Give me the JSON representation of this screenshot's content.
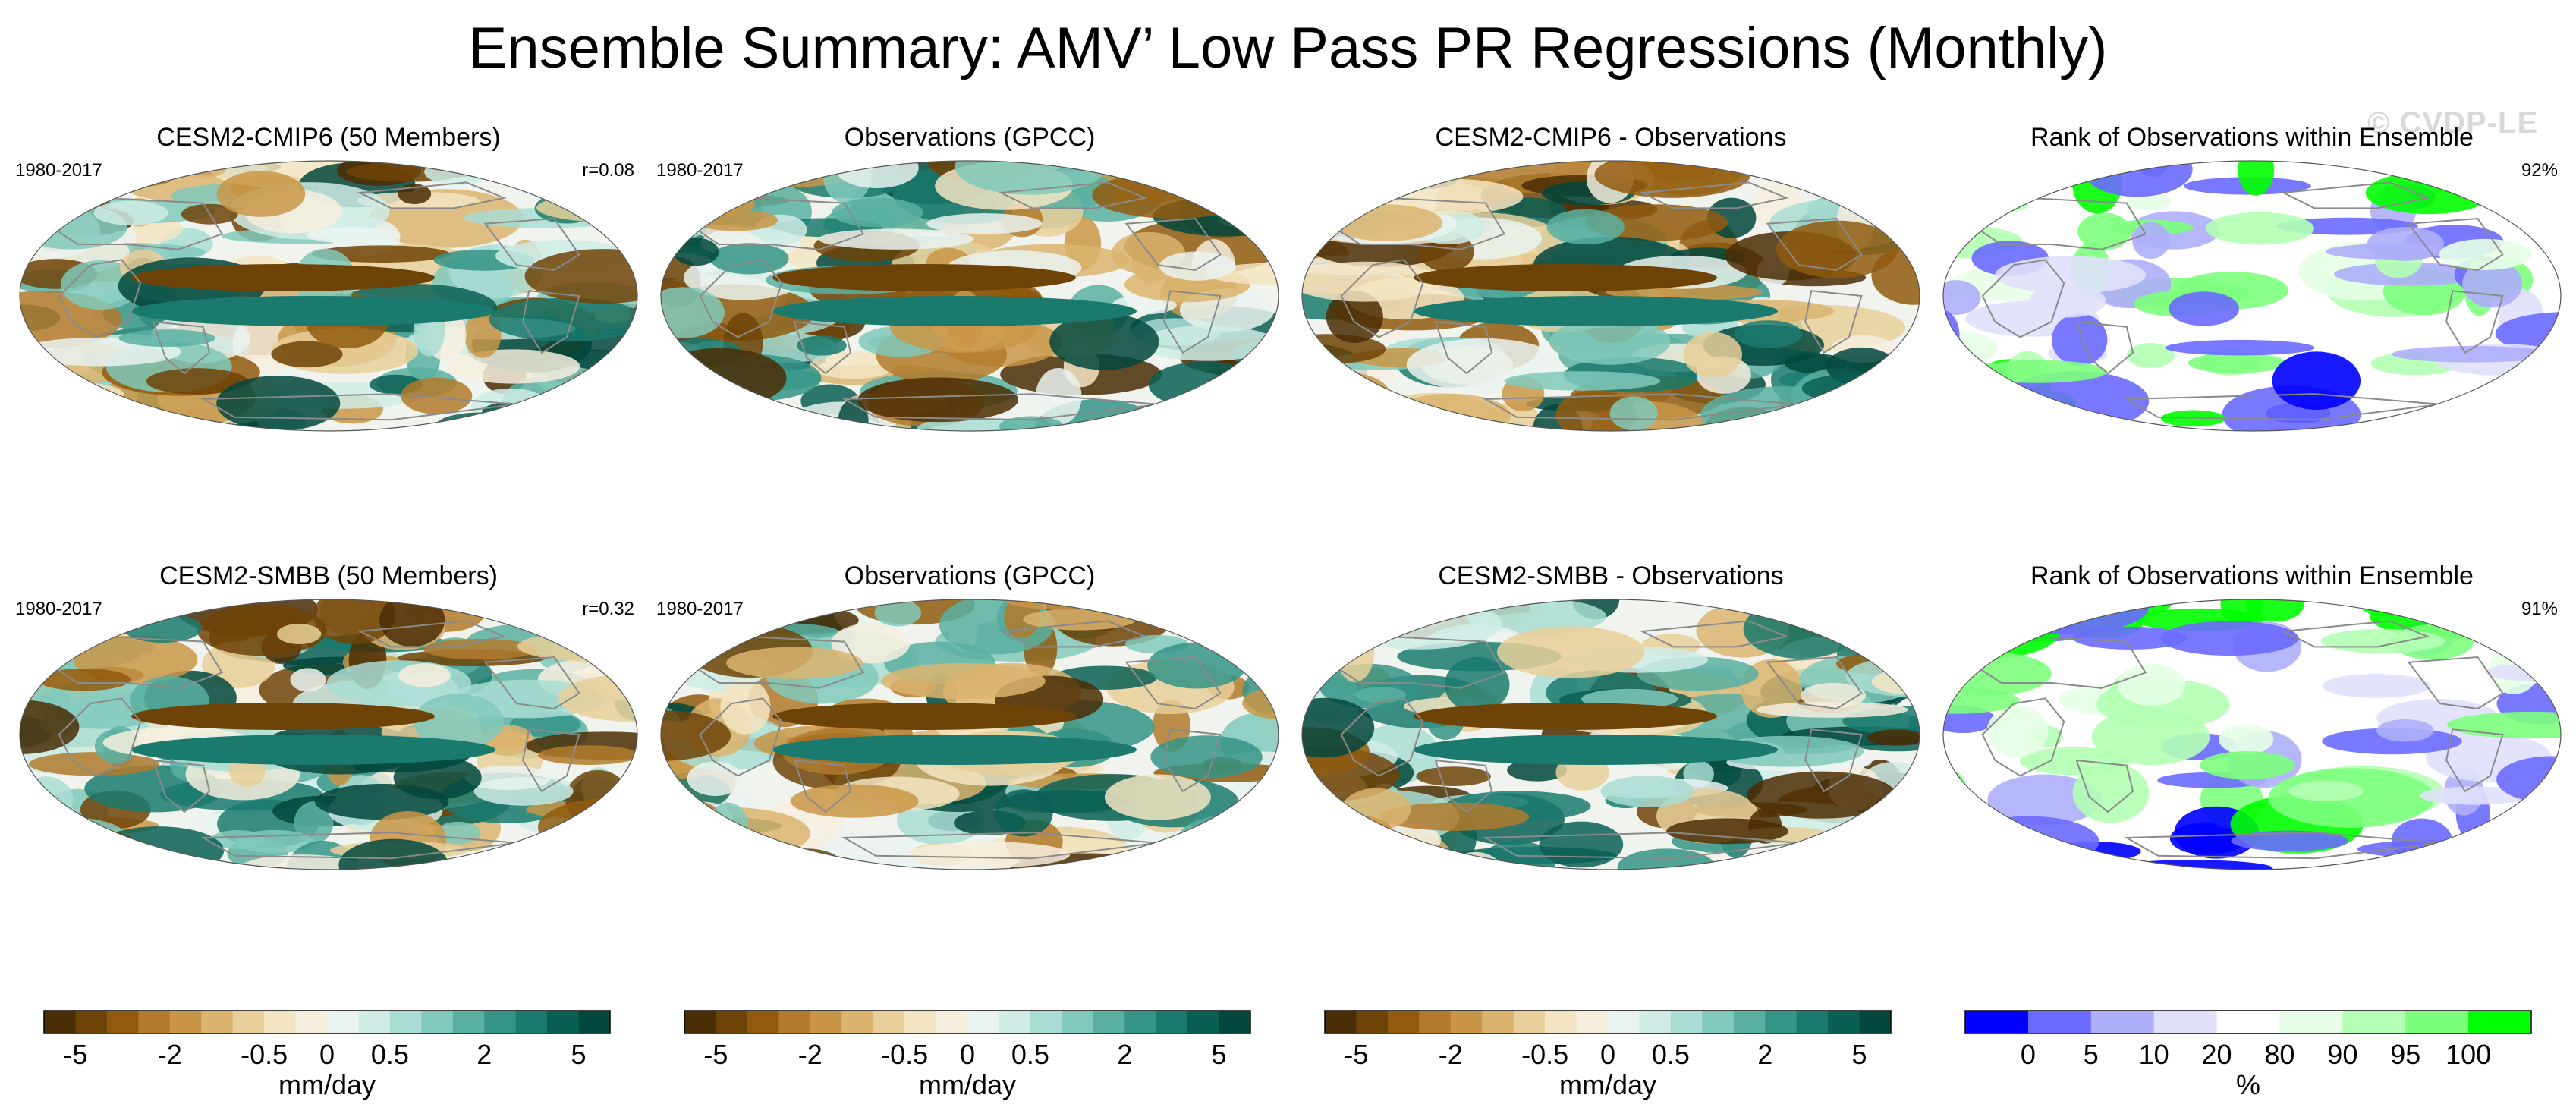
{
  "title": "Ensemble Summary: AMV’ Low Pass PR Regressions (Monthly)",
  "watermark": "© CVDP-LE",
  "colors": {
    "brbg": [
      "#4b2d05",
      "#6e4307",
      "#915a0e",
      "#b27a2c",
      "#c99647",
      "#dab46f",
      "#e8cf99",
      "#f3e5c3",
      "#f6efde",
      "#eaf3f0",
      "#cfece6",
      "#a9ddd3",
      "#80c9bb",
      "#59b0a1",
      "#349486",
      "#1a7a6d",
      "#0a5f53",
      "#02463c"
    ],
    "rank": [
      "#0000ff",
      "#6a6aff",
      "#aeaef9",
      "#e0e0fb",
      "#ffffff",
      "#e6ffe6",
      "#b3ffb3",
      "#7dff7d",
      "#00ff00"
    ],
    "land_outline": "#8a8a8a"
  },
  "rows": [
    {
      "panels": [
        {
          "title": "CESM2-CMIP6 (50 Members)",
          "period": "1980-2017",
          "stat": "r=0.08",
          "kind": "model"
        },
        {
          "title": "Observations (GPCC)",
          "period": "1980-2017",
          "stat": "",
          "kind": "obs"
        },
        {
          "title": "CESM2-CMIP6 - Observations",
          "period": "",
          "stat": "",
          "kind": "diff"
        },
        {
          "title": "Rank of Observations within Ensemble",
          "period": "",
          "stat": "92%",
          "kind": "rank"
        }
      ]
    },
    {
      "panels": [
        {
          "title": "CESM2-SMBB (50 Members)",
          "period": "1980-2017",
          "stat": "r=0.32",
          "kind": "model"
        },
        {
          "title": "Observations (GPCC)",
          "period": "1980-2017",
          "stat": "",
          "kind": "obs"
        },
        {
          "title": "CESM2-SMBB - Observations",
          "period": "",
          "stat": "",
          "kind": "diff"
        },
        {
          "title": "Rank of Observations within Ensemble",
          "period": "",
          "stat": "91%",
          "kind": "rank"
        }
      ]
    }
  ],
  "colorbars": [
    {
      "ticks": [
        "-5",
        "-2",
        "-0.5",
        "0",
        "0.5",
        "2",
        "5"
      ],
      "units": "mm/day"
    },
    {
      "ticks": [
        "-5",
        "-2",
        "-0.5",
        "0",
        "0.5",
        "2",
        "5"
      ],
      "units": "mm/day"
    },
    {
      "ticks": [
        "-5",
        "-2",
        "-0.5",
        "0",
        "0.5",
        "2",
        "5"
      ],
      "units": "mm/day"
    },
    {
      "ticks": [
        "0",
        "5",
        "10",
        "20",
        "80",
        "90",
        "95",
        "100"
      ],
      "units": "%"
    }
  ],
  "chart_data": {
    "type": "heatmap",
    "title": "Ensemble Summary: AMV’ Low Pass PR Regressions (Monthly)",
    "projection": "Robinson-like global map",
    "panels": [
      {
        "row": 1,
        "col": 1,
        "title": "CESM2-CMIP6 (50 Members)",
        "period": "1980-2017",
        "pattern_correlation": 0.08
      },
      {
        "row": 1,
        "col": 2,
        "title": "Observations (GPCC)",
        "period": "1980-2017"
      },
      {
        "row": 1,
        "col": 3,
        "title": "CESM2-CMIP6 - Observations"
      },
      {
        "row": 1,
        "col": 4,
        "title": "Rank of Observations within Ensemble",
        "percent_in_range": 92
      },
      {
        "row": 2,
        "col": 1,
        "title": "CESM2-SMBB (50 Members)",
        "period": "1980-2017",
        "pattern_correlation": 0.32
      },
      {
        "row": 2,
        "col": 2,
        "title": "Observations (GPCC)",
        "period": "1980-2017"
      },
      {
        "row": 2,
        "col": 3,
        "title": "CESM2-SMBB - Observations"
      },
      {
        "row": 2,
        "col": 4,
        "title": "Rank of Observations within Ensemble",
        "percent_in_range": 91
      }
    ],
    "colorbar_pr": {
      "units": "mm/day",
      "ticks": [
        -5,
        -2,
        -0.5,
        0,
        0.5,
        2,
        5
      ]
    },
    "colorbar_rank": {
      "units": "%",
      "ticks": [
        0,
        5,
        10,
        20,
        80,
        90,
        95,
        100
      ]
    }
  }
}
